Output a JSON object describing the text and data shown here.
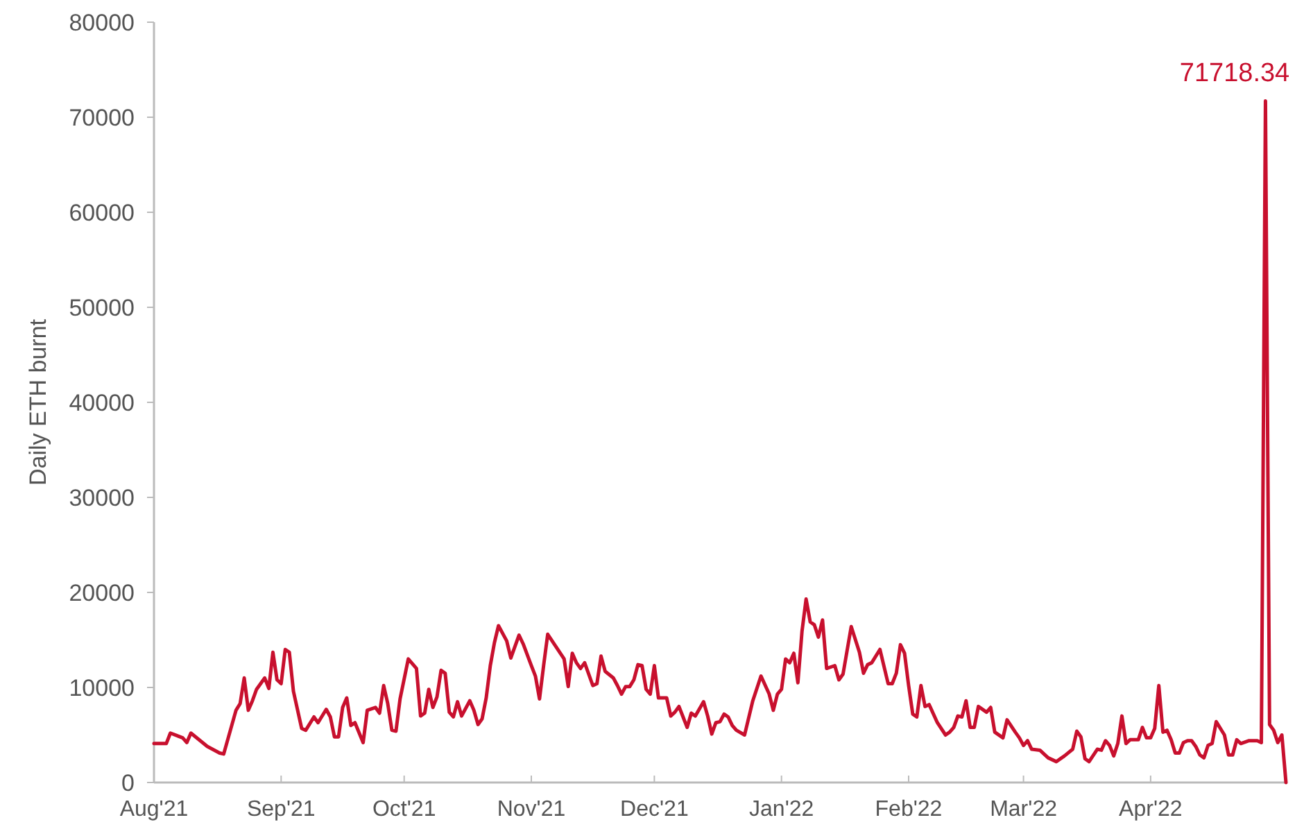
{
  "chart_data": {
    "type": "line",
    "ylabel": "Daily ETH burnt",
    "x": [
      "2021-08-01",
      "2021-08-04",
      "2021-08-05",
      "2021-08-08",
      "2021-08-09",
      "2021-08-10",
      "2021-08-14",
      "2021-08-17",
      "2021-08-18",
      "2021-08-21",
      "2021-08-22",
      "2021-08-23",
      "2021-08-24",
      "2021-08-25",
      "2021-08-26",
      "2021-08-28",
      "2021-08-29",
      "2021-08-30",
      "2021-08-31",
      "2021-09-01",
      "2021-09-02",
      "2021-09-03",
      "2021-09-04",
      "2021-09-06",
      "2021-09-07",
      "2021-09-09",
      "2021-09-10",
      "2021-09-12",
      "2021-09-13",
      "2021-09-14",
      "2021-09-15",
      "2021-09-16",
      "2021-09-17",
      "2021-09-18",
      "2021-09-19",
      "2021-09-21",
      "2021-09-22",
      "2021-09-24",
      "2021-09-25",
      "2021-09-26",
      "2021-09-27",
      "2021-09-28",
      "2021-09-29",
      "2021-09-30",
      "2021-10-02",
      "2021-10-04",
      "2021-10-05",
      "2021-10-06",
      "2021-10-07",
      "2021-10-08",
      "2021-10-09",
      "2021-10-10",
      "2021-10-11",
      "2021-10-12",
      "2021-10-13",
      "2021-10-14",
      "2021-10-15",
      "2021-10-17",
      "2021-10-18",
      "2021-10-19",
      "2021-10-20",
      "2021-10-21",
      "2021-10-22",
      "2021-10-23",
      "2021-10-24",
      "2021-10-26",
      "2021-10-27",
      "2021-10-29",
      "2021-10-30",
      "2021-11-01",
      "2021-11-02",
      "2021-11-03",
      "2021-11-04",
      "2021-11-05",
      "2021-11-07",
      "2021-11-09",
      "2021-11-10",
      "2021-11-11",
      "2021-11-12",
      "2021-11-13",
      "2021-11-14",
      "2021-11-16",
      "2021-11-17",
      "2021-11-18",
      "2021-11-19",
      "2021-11-21",
      "2021-11-22",
      "2021-11-23",
      "2021-11-24",
      "2021-11-25",
      "2021-11-26",
      "2021-11-27",
      "2021-11-28",
      "2021-11-29",
      "2021-11-30",
      "2021-12-01",
      "2021-12-02",
      "2021-12-04",
      "2021-12-05",
      "2021-12-06",
      "2021-12-07",
      "2021-12-08",
      "2021-12-09",
      "2021-12-10",
      "2021-12-11",
      "2021-12-13",
      "2021-12-14",
      "2021-12-15",
      "2021-12-16",
      "2021-12-17",
      "2021-12-18",
      "2021-12-19",
      "2021-12-20",
      "2021-12-21",
      "2021-12-23",
      "2021-12-25",
      "2021-12-27",
      "2021-12-29",
      "2021-12-30",
      "2021-12-31",
      "2022-01-01",
      "2022-01-02",
      "2022-01-03",
      "2022-01-04",
      "2022-01-05",
      "2022-01-06",
      "2022-01-07",
      "2022-01-08",
      "2022-01-09",
      "2022-01-10",
      "2022-01-11",
      "2022-01-12",
      "2022-01-14",
      "2022-01-15",
      "2022-01-16",
      "2022-01-18",
      "2022-01-20",
      "2022-01-21",
      "2022-01-22",
      "2022-01-23",
      "2022-01-25",
      "2022-01-27",
      "2022-01-28",
      "2022-01-29",
      "2022-01-30",
      "2022-01-31",
      "2022-02-01",
      "2022-02-02",
      "2022-02-03",
      "2022-02-04",
      "2022-02-05",
      "2022-02-06",
      "2022-02-08",
      "2022-02-10",
      "2022-02-11",
      "2022-02-12",
      "2022-02-13",
      "2022-02-14",
      "2022-02-15",
      "2022-02-16",
      "2022-02-17",
      "2022-02-18",
      "2022-02-20",
      "2022-02-21",
      "2022-02-22",
      "2022-02-24",
      "2022-02-25",
      "2022-02-27",
      "2022-02-28",
      "2022-03-01",
      "2022-03-02",
      "2022-03-03",
      "2022-03-05",
      "2022-03-07",
      "2022-03-09",
      "2022-03-11",
      "2022-03-13",
      "2022-03-14",
      "2022-03-15",
      "2022-03-16",
      "2022-03-17",
      "2022-03-19",
      "2022-03-20",
      "2022-03-21",
      "2022-03-22",
      "2022-03-23",
      "2022-03-24",
      "2022-03-25",
      "2022-03-26",
      "2022-03-27",
      "2022-03-29",
      "2022-03-30",
      "2022-03-31",
      "2022-04-01",
      "2022-04-02",
      "2022-04-03",
      "2022-04-04",
      "2022-04-05",
      "2022-04-06",
      "2022-04-07",
      "2022-04-08",
      "2022-04-09",
      "2022-04-10",
      "2022-04-11",
      "2022-04-12",
      "2022-04-13",
      "2022-04-14",
      "2022-04-15",
      "2022-04-16",
      "2022-04-17",
      "2022-04-19",
      "2022-04-20",
      "2022-04-21",
      "2022-04-22",
      "2022-04-23",
      "2022-04-25",
      "2022-04-27",
      "2022-04-28",
      "2022-04-29",
      "2022-04-30",
      "2022-05-01",
      "2022-05-02",
      "2022-05-03",
      "2022-05-04"
    ],
    "series": [
      {
        "color": "#c8102e",
        "values": [
          4100,
          4100,
          5200,
          4700,
          4200,
          5200,
          3800,
          3100,
          3000,
          7600,
          8300,
          11000,
          7600,
          8600,
          9800,
          11000,
          9900,
          13700,
          10800,
          10400,
          14000,
          13700,
          9600,
          5700,
          5500,
          6900,
          6300,
          7700,
          6900,
          4800,
          4800,
          7900,
          8900,
          6000,
          6300,
          4200,
          7600,
          7900,
          7300,
          10200,
          8300,
          5500,
          5400,
          8800,
          13000,
          12000,
          7000,
          7300,
          9800,
          7900,
          9000,
          11800,
          11500,
          7400,
          6900,
          8500,
          7000,
          8600,
          7600,
          6100,
          6700,
          8900,
          12300,
          14700,
          16500,
          14900,
          13100,
          15500,
          14600,
          12300,
          11200,
          8800,
          12300,
          15600,
          14300,
          13000,
          10100,
          13600,
          12600,
          12000,
          12600,
          10200,
          10400,
          13300,
          11700,
          11000,
          10200,
          9300,
          10100,
          10100,
          10800,
          12400,
          12300,
          9800,
          9300,
          12300,
          8900,
          8900,
          7000,
          7400,
          8000,
          6900,
          5800,
          7300,
          7000,
          8500,
          7000,
          5100,
          6300,
          6400,
          7200,
          6900,
          6000,
          5500,
          5000,
          8600,
          11200,
          9300,
          7600,
          9300,
          9800,
          13000,
          12600,
          13600,
          10500,
          15900,
          19300,
          16900,
          16600,
          15300,
          17100,
          12000,
          12300,
          10800,
          11400,
          16400,
          13700,
          11500,
          12400,
          12600,
          14000,
          10400,
          10400,
          11500,
          14500,
          13600,
          10200,
          7200,
          6900,
          10200,
          8000,
          8200,
          6300,
          5000,
          5300,
          5800,
          7000,
          6900,
          8600,
          5800,
          5800,
          8000,
          7400,
          7900,
          5300,
          4700,
          6600,
          5300,
          4700,
          3900,
          4400,
          3500,
          3400,
          2600,
          2200,
          2800,
          3500,
          5400,
          4800,
          2500,
          2200,
          3500,
          3400,
          4400,
          3900,
          2800,
          4100,
          7000,
          4100,
          4500,
          4500,
          5800,
          4700,
          4700,
          5700,
          10200,
          5300,
          5500,
          4500,
          3100,
          3100,
          4200,
          4400,
          4400,
          3800,
          2900,
          2600,
          3900,
          4100,
          6400,
          5000,
          2900,
          2900,
          4500,
          4100,
          4400,
          4400,
          4200,
          71718.34,
          6100,
          5500,
          4200,
          5000,
          0
        ]
      }
    ],
    "xlim": [
      "2021-08-01",
      "2022-05-04"
    ],
    "xticks": [
      {
        "value": "2021-08-01",
        "label": "Aug'21"
      },
      {
        "value": "2021-09-01",
        "label": "Sep'21"
      },
      {
        "value": "2021-10-01",
        "label": "Oct'21"
      },
      {
        "value": "2021-11-01",
        "label": "Nov'21"
      },
      {
        "value": "2021-12-01",
        "label": "Dec'21"
      },
      {
        "value": "2022-01-01",
        "label": "Jan'22"
      },
      {
        "value": "2022-02-01",
        "label": "Feb'22"
      },
      {
        "value": "2022-03-01",
        "label": "Mar'22"
      },
      {
        "value": "2022-04-01",
        "label": "Apr'22"
      }
    ],
    "ylim": [
      0,
      80000
    ],
    "yticks": [
      0,
      10000,
      20000,
      30000,
      40000,
      50000,
      60000,
      70000,
      80000
    ],
    "annotations": [
      {
        "text": "71718.34",
        "x": "2022-04-29",
        "y": 71718.34
      }
    ],
    "grid": false,
    "marker": "none",
    "line_style": "solid"
  }
}
